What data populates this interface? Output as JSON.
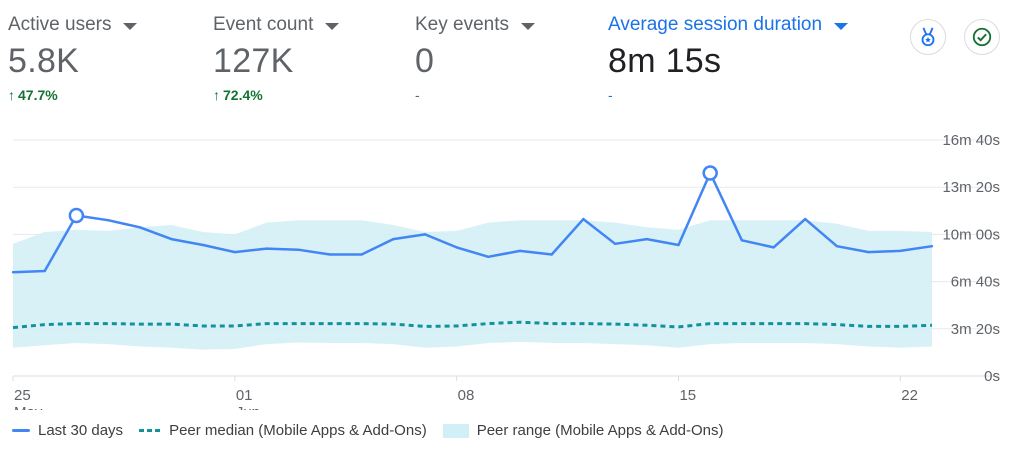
{
  "metrics": [
    {
      "title": "Active users",
      "value": "5.8K",
      "change": "47.7%",
      "direction": "up",
      "selected": false
    },
    {
      "title": "Event count",
      "value": "127K",
      "change": "72.4%",
      "direction": "up",
      "selected": false
    },
    {
      "title": "Key events",
      "value": "0",
      "change": "-",
      "direction": "none",
      "selected": false
    },
    {
      "title": "Average session duration",
      "value": "8m 15s",
      "change": "-",
      "direction": "none",
      "selected": true
    }
  ],
  "toolbar": {
    "insights_icon": "medal-icon",
    "status_icon": "check-circle-icon"
  },
  "colors": {
    "accent": "#1a73e8",
    "line": "#4285f4",
    "median": "#12939a",
    "range": "#d1eff6",
    "positive": "#137333"
  },
  "chart_data": {
    "type": "line",
    "x_labels": [
      {
        "day": 25,
        "line1": "25",
        "line2": "May"
      },
      {
        "day": 32,
        "line1": "01",
        "line2": "Jun"
      },
      {
        "day": 39,
        "line1": "08",
        "line2": ""
      },
      {
        "day": 46,
        "line1": "15",
        "line2": ""
      },
      {
        "day": 53,
        "line1": "22",
        "line2": ""
      }
    ],
    "x_range": [
      25,
      54
    ],
    "y_ticks": [
      {
        "label": "0s",
        "seconds": 0
      },
      {
        "label": "3m 20s",
        "seconds": 200
      },
      {
        "label": "6m 40s",
        "seconds": 400
      },
      {
        "label": "10m 00s",
        "seconds": 600
      },
      {
        "label": "13m 20s",
        "seconds": 800
      },
      {
        "label": "16m 40s",
        "seconds": 1000
      }
    ],
    "ylim": [
      0,
      1000
    ],
    "series": [
      {
        "name": "Last 30 days",
        "days": [
          25,
          26,
          27,
          28,
          29,
          30,
          31,
          32,
          33,
          34,
          35,
          36,
          37,
          38,
          39,
          40,
          41,
          42,
          43,
          44,
          45,
          46,
          47,
          48,
          49,
          50,
          51,
          52,
          53,
          54
        ],
        "values": [
          440,
          445,
          680,
          660,
          630,
          580,
          555,
          525,
          540,
          535,
          515,
          515,
          580,
          600,
          545,
          505,
          530,
          515,
          665,
          560,
          580,
          555,
          860,
          575,
          545,
          665,
          550,
          525,
          530,
          550
        ],
        "markers": [
          27,
          47
        ]
      },
      {
        "name": "Peer median (Mobile Apps & Add-Ons)",
        "days": [
          25,
          26,
          27,
          28,
          29,
          30,
          31,
          32,
          33,
          34,
          35,
          36,
          37,
          38,
          39,
          40,
          41,
          42,
          43,
          44,
          45,
          46,
          47,
          48,
          49,
          50,
          51,
          52,
          53,
          54
        ],
        "values": [
          205,
          218,
          222,
          222,
          220,
          220,
          212,
          212,
          222,
          222,
          222,
          222,
          220,
          210,
          212,
          222,
          228,
          222,
          222,
          220,
          215,
          208,
          222,
          222,
          222,
          222,
          218,
          210,
          210,
          215
        ]
      }
    ],
    "range": {
      "name": "Peer range (Mobile Apps & Add-Ons)",
      "days": [
        25,
        26,
        27,
        28,
        29,
        30,
        31,
        32,
        33,
        34,
        35,
        36,
        37,
        38,
        39,
        40,
        41,
        42,
        43,
        44,
        45,
        46,
        47,
        48,
        49,
        50,
        51,
        52,
        53,
        54
      ],
      "low": [
        120,
        130,
        140,
        135,
        125,
        120,
        112,
        115,
        135,
        142,
        140,
        140,
        135,
        120,
        125,
        140,
        145,
        140,
        140,
        135,
        130,
        120,
        135,
        140,
        140,
        140,
        135,
        125,
        120,
        125
      ],
      "high": [
        560,
        610,
        620,
        615,
        630,
        640,
        610,
        600,
        650,
        660,
        660,
        660,
        640,
        610,
        615,
        650,
        660,
        660,
        660,
        650,
        630,
        620,
        660,
        660,
        660,
        660,
        645,
        615,
        615,
        610
      ]
    }
  },
  "legend": [
    {
      "label": "Last 30 days",
      "kind": "line"
    },
    {
      "label": "Peer median (Mobile Apps & Add-Ons)",
      "kind": "dash"
    },
    {
      "label": "Peer range (Mobile Apps & Add-Ons)",
      "kind": "range"
    }
  ]
}
